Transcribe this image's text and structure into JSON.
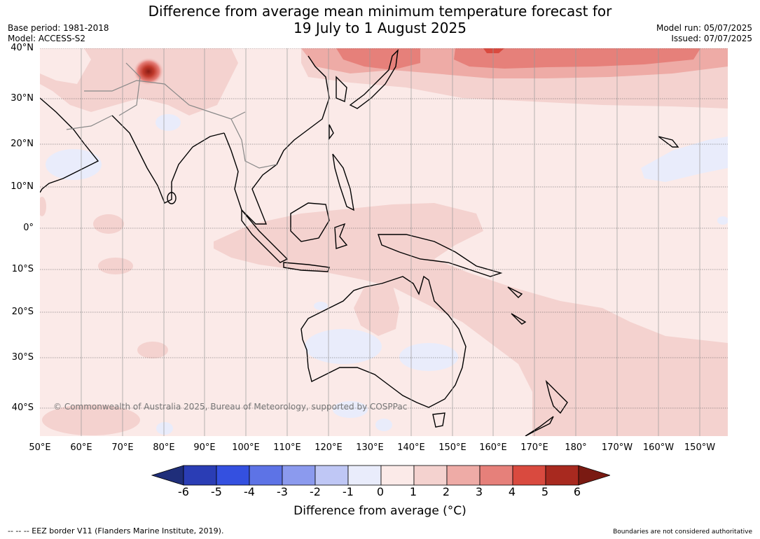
{
  "header": {
    "title_line1": "Difference from average mean minimum temperature forecast for",
    "title_line2": "19 July to 1 August 2025",
    "base_period": "Base period: 1981-2018",
    "model": "Model: ACCESS-S2",
    "model_run": "Model run: 05/07/2025",
    "issued": "Issued: 07/07/2025"
  },
  "map": {
    "lat_labels": [
      "40°N",
      "30°N",
      "20°N",
      "10°N",
      "0°",
      "10°S",
      "20°S",
      "30°S",
      "40°S"
    ],
    "lon_labels": [
      "50°E",
      "60°E",
      "70°E",
      "80°E",
      "90°E",
      "100°E",
      "110°E",
      "120°E",
      "130°E",
      "140°E",
      "150°E",
      "160°E",
      "170°E",
      "180°",
      "170°W",
      "160°W",
      "150°W"
    ],
    "copyright": "© Commonwealth of Australia 2025, Bureau of Meteorology, supported by COSPPac",
    "colors": {
      "land_outline": "#000000",
      "border": "#888888",
      "grid": "#555555",
      "base_0_1": "#fbeae8"
    }
  },
  "colorbar": {
    "ticks": [
      "-6",
      "-5",
      "-4",
      "-3",
      "-2",
      "-1",
      "0",
      "1",
      "2",
      "3",
      "4",
      "5",
      "6"
    ],
    "label": "Difference from average (°C)",
    "colors": [
      "#1f2e7a",
      "#2a3db5",
      "#3450e0",
      "#5d73e6",
      "#8b9aee",
      "#bfc7f5",
      "#e9ecfb",
      "#fbeae8",
      "#f4d2cf",
      "#eeaba6",
      "#e6807a",
      "#d94a3f",
      "#a8291f",
      "#7a1a12"
    ]
  },
  "footer": {
    "eez": "--  --  -- EEZ border V11 (Flanders Marine Institute, 2019).",
    "disclaimer": "Boundaries are not considered authoritative"
  }
}
